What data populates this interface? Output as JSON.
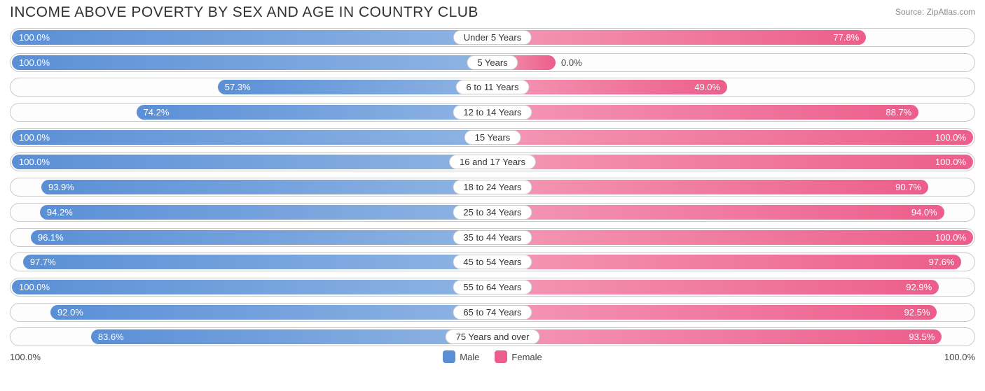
{
  "title": "INCOME ABOVE POVERTY BY SEX AND AGE IN COUNTRY CLUB",
  "source": "Source: ZipAtlas.com",
  "colors": {
    "male": "#5a8fd6",
    "male_light": "#8fb4e3",
    "female": "#ec5e8b",
    "female_light": "#f497b5",
    "track_border": "#c9c9c9",
    "text_white": "#ffffff",
    "text_dark": "#444444"
  },
  "axis": {
    "left": "100.0%",
    "right": "100.0%"
  },
  "legend": {
    "male": "Male",
    "female": "Female"
  },
  "label_inside_threshold": 30,
  "rows": [
    {
      "category": "Under 5 Years",
      "male": 100.0,
      "female": 77.8
    },
    {
      "category": "5 Years",
      "male": 100.0,
      "female": 0.0
    },
    {
      "category": "6 to 11 Years",
      "male": 57.3,
      "female": 49.0
    },
    {
      "category": "12 to 14 Years",
      "male": 74.2,
      "female": 88.7
    },
    {
      "category": "15 Years",
      "male": 100.0,
      "female": 100.0
    },
    {
      "category": "16 and 17 Years",
      "male": 100.0,
      "female": 100.0
    },
    {
      "category": "18 to 24 Years",
      "male": 93.9,
      "female": 90.7
    },
    {
      "category": "25 to 34 Years",
      "male": 94.2,
      "female": 94.0
    },
    {
      "category": "35 to 44 Years",
      "male": 96.1,
      "female": 100.0
    },
    {
      "category": "45 to 54 Years",
      "male": 97.7,
      "female": 97.6
    },
    {
      "category": "55 to 64 Years",
      "male": 100.0,
      "female": 92.9
    },
    {
      "category": "65 to 74 Years",
      "male": 92.0,
      "female": 92.5
    },
    {
      "category": "75 Years and over",
      "male": 83.6,
      "female": 93.5
    }
  ]
}
